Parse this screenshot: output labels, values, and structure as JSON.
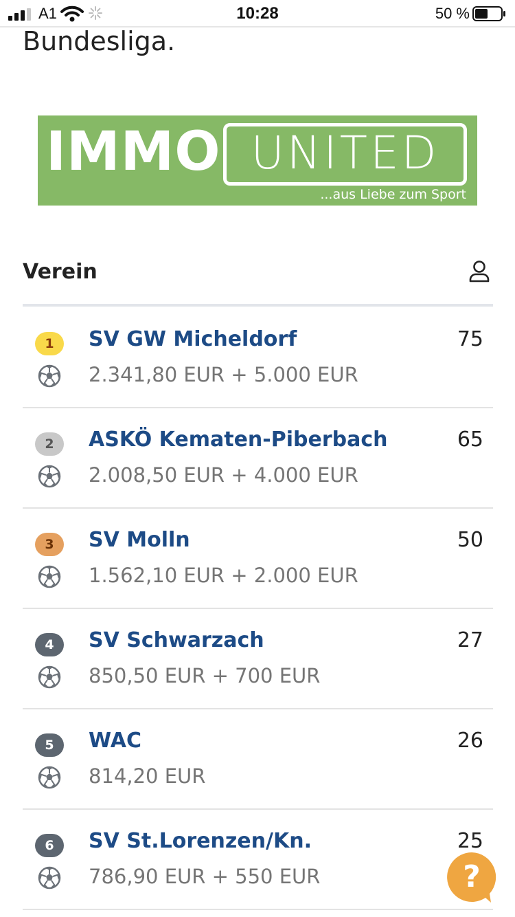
{
  "status_bar": {
    "carrier": "A1",
    "time": "10:28",
    "battery_percent": "50 %"
  },
  "page": {
    "heading": "Bundesliga."
  },
  "banner": {
    "word1": "IMMO",
    "word2": "UNITED",
    "slogan": "...aus Liebe zum Sport",
    "color": "#86b966"
  },
  "table": {
    "header_label": "Verein",
    "header_icon": "user-icon",
    "rows": [
      {
        "rank": "1",
        "club": "SV GW Micheldorf",
        "prize": "2.341,80 EUR + 5.000 EUR",
        "points": "75",
        "badge_color": "#f9d94a",
        "badge_text_color": "#8a3b0b"
      },
      {
        "rank": "2",
        "club": "ASKÖ Kematen-Piberbach",
        "prize": "2.008,50 EUR + 4.000 EUR",
        "points": "65",
        "badge_color": "#c8c8c8",
        "badge_text_color": "#555555"
      },
      {
        "rank": "3",
        "club": "SV Molln",
        "prize": "1.562,10 EUR + 2.000 EUR",
        "points": "50",
        "badge_color": "#e5a05f",
        "badge_text_color": "#6a3207"
      },
      {
        "rank": "4",
        "club": "SV Schwarzach",
        "prize": "850,50 EUR + 700 EUR",
        "points": "27",
        "badge_color": "#5d6670",
        "badge_text_color": "#ffffff"
      },
      {
        "rank": "5",
        "club": "WAC",
        "prize": "814,20 EUR",
        "points": "26",
        "badge_color": "#5d6670",
        "badge_text_color": "#ffffff"
      },
      {
        "rank": "6",
        "club": "SV St.Lorenzen/Kn.",
        "prize": "786,90 EUR + 550 EUR",
        "points": "25",
        "badge_color": "#5d6670",
        "badge_text_color": "#ffffff"
      }
    ]
  },
  "help": {
    "label": "?",
    "icon": "help-icon",
    "color": "#efa641"
  }
}
